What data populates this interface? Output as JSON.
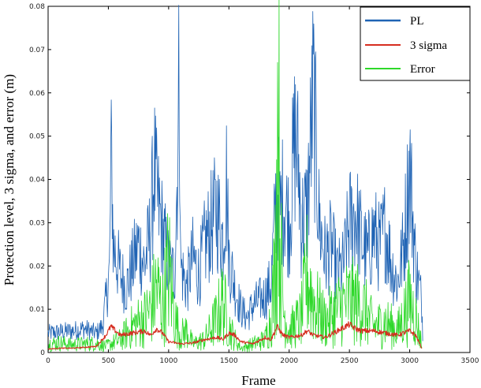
{
  "chart_data": {
    "type": "line",
    "title": "",
    "xlabel": "Frame",
    "ylabel": "Protection level, 3 sigma, and error (m)",
    "xlim": [
      0,
      3500
    ],
    "ylim": [
      0,
      0.08
    ],
    "xticks": [
      "0",
      "500",
      "1000",
      "1500",
      "2000",
      "2500",
      "3000",
      "3500"
    ],
    "yticks": [
      "0",
      "0.01",
      "0.02",
      "0.03",
      "0.04",
      "0.05",
      "0.06",
      "0.07",
      "0.08"
    ],
    "grid": false,
    "legend_position": "top-right",
    "series": [
      {
        "name": "PL",
        "color": "#1f63b4",
        "points": [
          [
            0,
            0.0045
          ],
          [
            100,
            0.0048
          ],
          [
            200,
            0.005
          ],
          [
            300,
            0.0055
          ],
          [
            400,
            0.0045
          ],
          [
            450,
            0.006
          ],
          [
            480,
            0.012
          ],
          [
            510,
            0.019
          ],
          [
            520,
            0.042
          ],
          [
            530,
            0.043
          ],
          [
            540,
            0.025
          ],
          [
            600,
            0.018
          ],
          [
            650,
            0.015
          ],
          [
            700,
            0.02
          ],
          [
            750,
            0.025
          ],
          [
            800,
            0.02
          ],
          [
            850,
            0.028
          ],
          [
            880,
            0.043
          ],
          [
            900,
            0.036
          ],
          [
            950,
            0.028
          ],
          [
            1000,
            0.02
          ],
          [
            1050,
            0.018
          ],
          [
            1080,
            0.052
          ],
          [
            1090,
            0.069
          ],
          [
            1100,
            0.02
          ],
          [
            1150,
            0.015
          ],
          [
            1200,
            0.022
          ],
          [
            1250,
            0.018
          ],
          [
            1300,
            0.025
          ],
          [
            1350,
            0.029
          ],
          [
            1400,
            0.033
          ],
          [
            1450,
            0.026
          ],
          [
            1480,
            0.04
          ],
          [
            1500,
            0.022
          ],
          [
            1550,
            0.015
          ],
          [
            1600,
            0.01
          ],
          [
            1650,
            0.008
          ],
          [
            1700,
            0.011
          ],
          [
            1750,
            0.012
          ],
          [
            1800,
            0.013
          ],
          [
            1850,
            0.016
          ],
          [
            1880,
            0.03
          ],
          [
            1900,
            0.04
          ],
          [
            1920,
            0.032
          ],
          [
            1950,
            0.036
          ],
          [
            2000,
            0.03
          ],
          [
            2050,
            0.05
          ],
          [
            2080,
            0.042
          ],
          [
            2100,
            0.03
          ],
          [
            2150,
            0.033
          ],
          [
            2200,
            0.06
          ],
          [
            2250,
            0.03
          ],
          [
            2300,
            0.022
          ],
          [
            2350,
            0.025
          ],
          [
            2400,
            0.018
          ],
          [
            2450,
            0.02
          ],
          [
            2500,
            0.03
          ],
          [
            2550,
            0.032
          ],
          [
            2600,
            0.026
          ],
          [
            2650,
            0.022
          ],
          [
            2700,
            0.028
          ],
          [
            2750,
            0.024
          ],
          [
            2800,
            0.029
          ],
          [
            2850,
            0.02
          ],
          [
            2900,
            0.016
          ],
          [
            2950,
            0.025
          ],
          [
            3000,
            0.043
          ],
          [
            3050,
            0.02
          ],
          [
            3100,
            0.012
          ],
          [
            3110,
            0.002
          ]
        ]
      },
      {
        "name": "3 sigma",
        "color": "#d62d20",
        "points": [
          [
            0,
            0.0008
          ],
          [
            100,
            0.001
          ],
          [
            200,
            0.001
          ],
          [
            300,
            0.0012
          ],
          [
            400,
            0.0014
          ],
          [
            480,
            0.004
          ],
          [
            520,
            0.006
          ],
          [
            560,
            0.005
          ],
          [
            600,
            0.004
          ],
          [
            700,
            0.0045
          ],
          [
            800,
            0.005
          ],
          [
            850,
            0.004
          ],
          [
            900,
            0.0055
          ],
          [
            950,
            0.0045
          ],
          [
            1000,
            0.0025
          ],
          [
            1100,
            0.002
          ],
          [
            1200,
            0.0022
          ],
          [
            1300,
            0.003
          ],
          [
            1400,
            0.0035
          ],
          [
            1450,
            0.003
          ],
          [
            1500,
            0.0045
          ],
          [
            1550,
            0.004
          ],
          [
            1600,
            0.0025
          ],
          [
            1700,
            0.002
          ],
          [
            1800,
            0.0035
          ],
          [
            1850,
            0.003
          ],
          [
            1900,
            0.006
          ],
          [
            1950,
            0.004
          ],
          [
            2000,
            0.0035
          ],
          [
            2100,
            0.004
          ],
          [
            2150,
            0.005
          ],
          [
            2200,
            0.004
          ],
          [
            2300,
            0.0035
          ],
          [
            2400,
            0.005
          ],
          [
            2500,
            0.0065
          ],
          [
            2550,
            0.0055
          ],
          [
            2600,
            0.005
          ],
          [
            2700,
            0.005
          ],
          [
            2800,
            0.0045
          ],
          [
            2900,
            0.004
          ],
          [
            3000,
            0.005
          ],
          [
            3050,
            0.004
          ],
          [
            3100,
            0.001
          ]
        ]
      },
      {
        "name": "Error",
        "color": "#2ed82a",
        "points": [
          [
            0,
            0.002
          ],
          [
            100,
            0.0022
          ],
          [
            200,
            0.0018
          ],
          [
            300,
            0.002
          ],
          [
            400,
            0.0021
          ],
          [
            480,
            0.0015
          ],
          [
            520,
            0.002
          ],
          [
            600,
            0.003
          ],
          [
            700,
            0.006
          ],
          [
            800,
            0.008
          ],
          [
            850,
            0.01
          ],
          [
            900,
            0.015
          ],
          [
            950,
            0.01
          ],
          [
            1000,
            0.02
          ],
          [
            1050,
            0.008
          ],
          [
            1100,
            0.004
          ],
          [
            1150,
            0.005
          ],
          [
            1200,
            0.002
          ],
          [
            1300,
            0.003
          ],
          [
            1400,
            0.008
          ],
          [
            1450,
            0.012
          ],
          [
            1500,
            0.006
          ],
          [
            1550,
            0.003
          ],
          [
            1600,
            0.001
          ],
          [
            1700,
            0.002
          ],
          [
            1800,
            0.003
          ],
          [
            1850,
            0.008
          ],
          [
            1880,
            0.018
          ],
          [
            1900,
            0.04
          ],
          [
            1910,
            0.072
          ],
          [
            1920,
            0.03
          ],
          [
            1950,
            0.01
          ],
          [
            2000,
            0.005
          ],
          [
            2100,
            0.008
          ],
          [
            2150,
            0.018
          ],
          [
            2200,
            0.012
          ],
          [
            2300,
            0.007
          ],
          [
            2400,
            0.01
          ],
          [
            2500,
            0.012
          ],
          [
            2600,
            0.011
          ],
          [
            2700,
            0.006
          ],
          [
            2800,
            0.007
          ],
          [
            2900,
            0.005
          ],
          [
            3000,
            0.012
          ],
          [
            3050,
            0.008
          ],
          [
            3100,
            0.002
          ]
        ]
      }
    ]
  }
}
